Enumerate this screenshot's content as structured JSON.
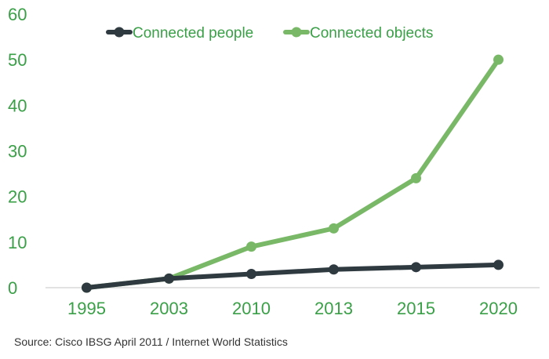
{
  "chart_data": {
    "type": "line",
    "title": "",
    "xlabel": "",
    "ylabel": "",
    "categories": [
      "1995",
      "2003",
      "2010",
      "2013",
      "2015",
      "2020"
    ],
    "x": [
      1995,
      2003,
      2010,
      2013,
      2015,
      2020
    ],
    "ylim": [
      0,
      60
    ],
    "yticks": [
      0,
      10,
      20,
      30,
      40,
      50,
      60
    ],
    "grid": false,
    "legend_position": "top",
    "series": [
      {
        "name": "Connected people",
        "color": "#2f3a40",
        "values": [
          0,
          2,
          3,
          4,
          4.5,
          5
        ]
      },
      {
        "name": "Connected objects",
        "color": "#78b866",
        "values": [
          0,
          2,
          9,
          13,
          24,
          50
        ]
      }
    ],
    "tick_color": "#3aa047",
    "legend_text_color": "#3aa047",
    "axis_color": "#d9d9d9"
  },
  "source_note": "Source: Cisco IBSG April 2011 / Internet  World Statistics"
}
